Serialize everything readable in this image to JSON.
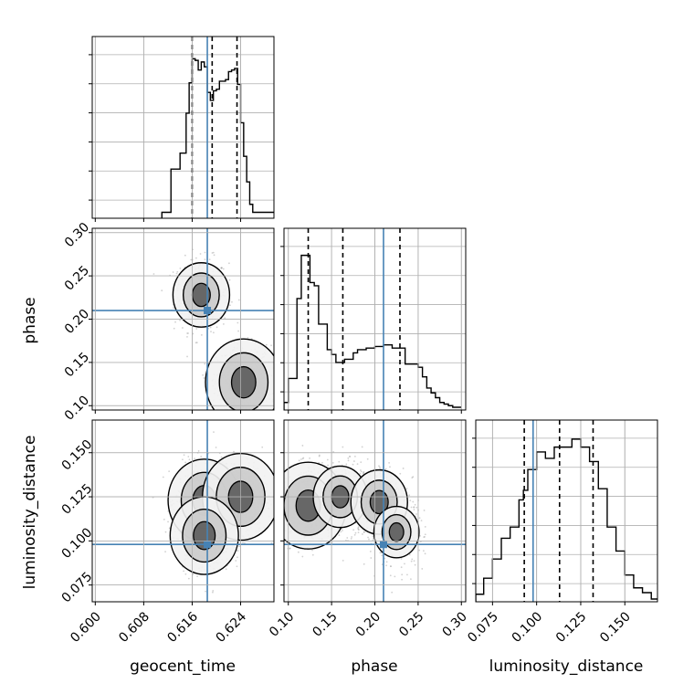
{
  "chart_data": {
    "type": "corner",
    "parameters": [
      "geocent_time",
      "phase",
      "luminosity_distance"
    ],
    "labels": {
      "geocent_time": "geocent_time",
      "phase": "phase",
      "luminosity_distance": "luminosity_distance"
    },
    "ranges": {
      "geocent_time": [
        0.5995,
        0.6295
      ],
      "phase": [
        0.095,
        0.305
      ],
      "luminosity_distance": [
        0.0655,
        0.1685
      ]
    },
    "ticks": {
      "geocent_time": [
        0.6,
        0.608,
        0.616,
        0.624
      ],
      "phase": [
        0.1,
        0.15,
        0.2,
        0.25,
        0.3
      ],
      "luminosity_distance": [
        0.075,
        0.1,
        0.125,
        0.15
      ]
    },
    "tick_labels": {
      "geocent_time": [
        "0.600",
        "0.608",
        "0.616",
        "0.624"
      ],
      "phase": [
        "0.10",
        "0.15",
        "0.20",
        "0.25",
        "0.30"
      ],
      "luminosity_distance": [
        "0.075",
        "0.100",
        "0.125",
        "0.150"
      ]
    },
    "truths": {
      "geocent_time": 0.6185,
      "phase": 0.21,
      "luminosity_distance": 0.098
    },
    "quantiles": {
      "geocent_time": [
        0.616,
        0.6193,
        0.6234
      ],
      "phase": [
        0.123,
        0.163,
        0.229
      ],
      "luminosity_distance": [
        0.093,
        0.113,
        0.132
      ]
    },
    "histograms": {
      "geocent_time": {
        "edges": [
          0.611,
          0.6125,
          0.614,
          0.615,
          0.6155,
          0.616,
          0.6165,
          0.617,
          0.6175,
          0.618,
          0.6185,
          0.619,
          0.6195,
          0.62,
          0.6205,
          0.621,
          0.6215,
          0.622,
          0.6225,
          0.623,
          0.6235,
          0.624,
          0.6245,
          0.625,
          0.6255,
          0.626,
          0.6265,
          0.627,
          0.628,
          0.6295
        ],
        "counts": [
          0.02,
          0.29,
          0.39,
          0.64,
          0.83,
          0.98,
          0.97,
          0.91,
          0.96,
          0.93,
          0.77,
          0.72,
          0.78,
          0.79,
          0.84,
          0.84,
          0.85,
          0.9,
          0.91,
          0.92,
          0.82,
          0.58,
          0.37,
          0.21,
          0.07,
          0.02,
          0.02,
          0.02,
          0.02
        ]
      },
      "phase": {
        "edges": [
          0.095,
          0.1,
          0.11,
          0.115,
          0.12,
          0.125,
          0.13,
          0.135,
          0.14,
          0.145,
          0.15,
          0.155,
          0.16,
          0.165,
          0.17,
          0.175,
          0.18,
          0.185,
          0.19,
          0.195,
          0.2,
          0.205,
          0.21,
          0.215,
          0.22,
          0.225,
          0.23,
          0.235,
          0.24,
          0.245,
          0.25,
          0.255,
          0.26,
          0.265,
          0.27,
          0.275,
          0.28,
          0.285,
          0.29,
          0.295,
          0.3
        ],
        "counts": [
          0.03,
          0.18,
          0.68,
          0.95,
          0.95,
          0.78,
          0.76,
          0.52,
          0.52,
          0.36,
          0.33,
          0.28,
          0.28,
          0.3,
          0.3,
          0.34,
          0.36,
          0.36,
          0.37,
          0.37,
          0.38,
          0.38,
          0.39,
          0.39,
          0.37,
          0.37,
          0.37,
          0.27,
          0.27,
          0.27,
          0.25,
          0.19,
          0.12,
          0.09,
          0.06,
          0.03,
          0.02,
          0.01,
          0.0,
          0.0
        ]
      },
      "luminosity_distance": {
        "edges": [
          0.0655,
          0.07,
          0.075,
          0.08,
          0.085,
          0.09,
          0.0925,
          0.095,
          0.1,
          0.105,
          0.11,
          0.115,
          0.12,
          0.125,
          0.13,
          0.135,
          0.14,
          0.145,
          0.15,
          0.155,
          0.16,
          0.165,
          0.1685
        ],
        "counts": [
          0.03,
          0.13,
          0.25,
          0.38,
          0.45,
          0.62,
          0.68,
          0.81,
          0.92,
          0.88,
          0.95,
          0.95,
          1.0,
          0.95,
          0.86,
          0.69,
          0.45,
          0.3,
          0.15,
          0.07,
          0.04,
          0.0
        ]
      }
    },
    "density_2d": [
      {
        "x": "geocent_time",
        "y": "phase",
        "peaks": [
          {
            "cx": 0.6175,
            "cy": 0.228,
            "weight": 0.55
          },
          {
            "cx": 0.6245,
            "cy": 0.127,
            "weight": 1.0
          }
        ]
      },
      {
        "x": "geocent_time",
        "y": "luminosity_distance",
        "peaks": [
          {
            "cx": 0.618,
            "cy": 0.123,
            "weight": 0.9
          },
          {
            "cx": 0.624,
            "cy": 0.125,
            "weight": 1.0
          },
          {
            "cx": 0.618,
            "cy": 0.103,
            "weight": 0.8
          }
        ]
      },
      {
        "x": "phase",
        "y": "luminosity_distance",
        "peaks": [
          {
            "cx": 0.123,
            "cy": 0.12,
            "weight": 1.0
          },
          {
            "cx": 0.16,
            "cy": 0.125,
            "weight": 0.5
          },
          {
            "cx": 0.205,
            "cy": 0.122,
            "weight": 0.55
          },
          {
            "cx": 0.225,
            "cy": 0.105,
            "weight": 0.35
          }
        ]
      }
    ],
    "colors": {
      "truth": "#4682b4",
      "hist": "#000000",
      "quantile": "#000000",
      "contour": "#000000",
      "grid": "#b0b0b0",
      "points": "#9a9a9a"
    }
  }
}
